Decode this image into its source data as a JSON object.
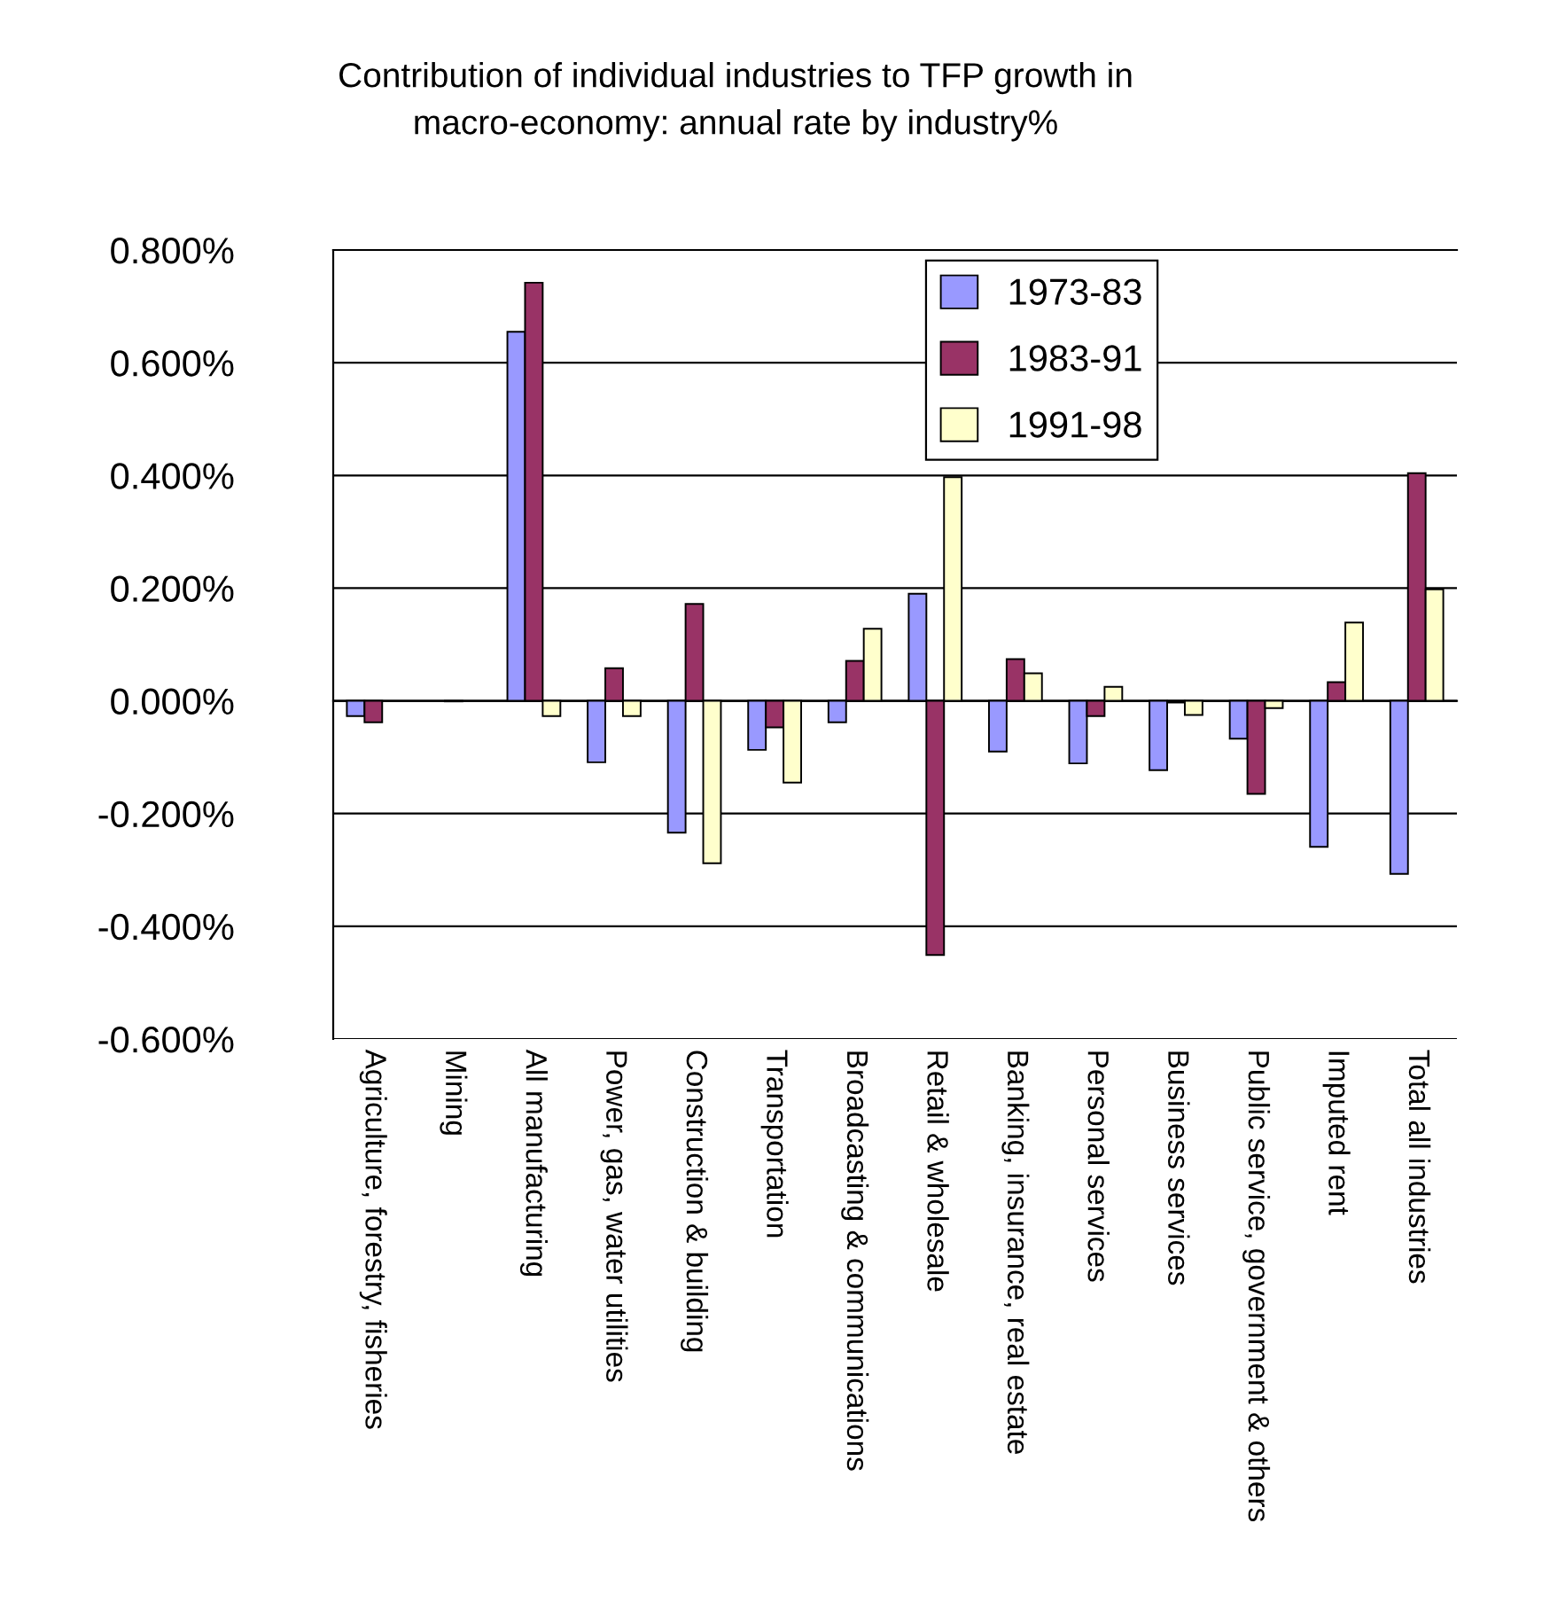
{
  "chart_data": {
    "type": "bar",
    "title": "Contribution of individual industries to TFP growth in\nmacro-economy: annual rate by industry%",
    "categories": [
      "Agriculture, forestry, fisheries",
      "Mining",
      "All manufacturing",
      "Power, gas, water utilities",
      "Construction & building",
      "Transportation",
      "Broadcasting & communications",
      "Retail & wholesale",
      "Banking, insurance, real estate",
      "Personal services",
      "Business services",
      "Public service, government & others",
      "Imputed rent",
      "Total all industries"
    ],
    "series": [
      {
        "name": "1973-83",
        "color": "#9999ff",
        "values": [
          -0.027,
          null,
          0.655,
          -0.109,
          -0.234,
          -0.087,
          -0.038,
          0.19,
          -0.09,
          -0.111,
          -0.123,
          -0.067,
          -0.259,
          -0.307
        ]
      },
      {
        "name": "1983-91",
        "color": "#993366",
        "values": [
          -0.038,
          -0.001,
          0.742,
          0.058,
          0.172,
          -0.047,
          0.071,
          -0.451,
          0.074,
          -0.027,
          -0.003,
          -0.165,
          0.033,
          0.404
        ]
      },
      {
        "name": "1991-98",
        "color": "#ffffcc",
        "values": [
          null,
          null,
          -0.027,
          -0.027,
          -0.288,
          -0.145,
          0.128,
          0.397,
          0.049,
          0.025,
          -0.025,
          -0.013,
          0.139,
          0.198
        ]
      }
    ],
    "ylim": [
      -0.6,
      0.8
    ],
    "yticks": [
      {
        "value": -0.6,
        "label": "-0.600%"
      },
      {
        "value": -0.4,
        "label": "-0.400%"
      },
      {
        "value": -0.2,
        "label": "-0.200%"
      },
      {
        "value": 0,
        "label": "0.000%"
      },
      {
        "value": 0.2,
        "label": "0.200%"
      },
      {
        "value": 0.4,
        "label": "0.400%"
      },
      {
        "value": 0.6,
        "label": "0.600%"
      },
      {
        "value": 0.8,
        "label": "0.800%"
      }
    ],
    "grid": "y",
    "legend": "top right"
  }
}
